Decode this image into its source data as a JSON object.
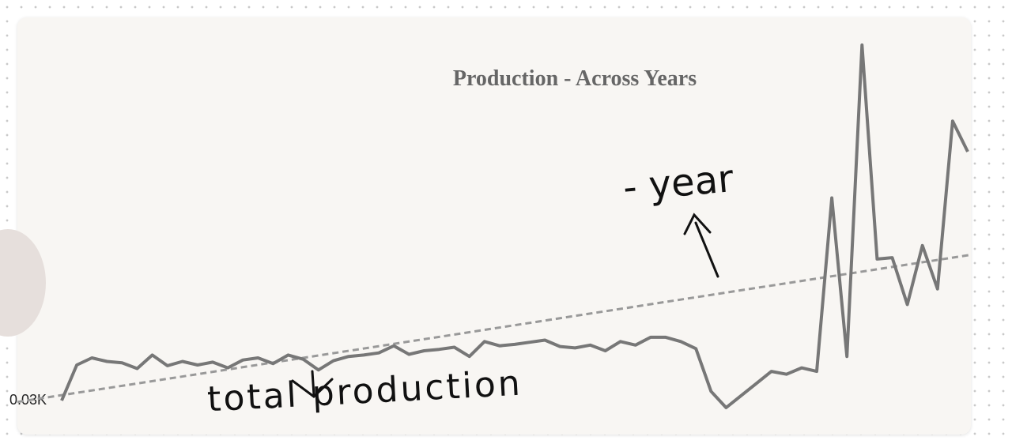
{
  "chart_data": {
    "type": "line",
    "title": "Production - Across Years",
    "y_ticks": [
      "0.03K"
    ],
    "trendline": true,
    "grid": false,
    "legend": "none",
    "series": [
      {
        "color": "#777777",
        "values": [
          0.03,
          0.08,
          0.09,
          0.085,
          0.083,
          0.075,
          0.094,
          0.079,
          0.085,
          0.08,
          0.084,
          0.076,
          0.087,
          0.09,
          0.082,
          0.094,
          0.088,
          0.073,
          0.086,
          0.092,
          0.094,
          0.097,
          0.107,
          0.095,
          0.1,
          0.102,
          0.105,
          0.092,
          0.113,
          0.107,
          0.109,
          0.112,
          0.115,
          0.106,
          0.104,
          0.108,
          0.1,
          0.113,
          0.108,
          0.119,
          0.119,
          0.113,
          0.103,
          0.043,
          0.02,
          0.037,
          0.054,
          0.071,
          0.067,
          0.076,
          0.071,
          0.315,
          0.092,
          0.53,
          0.229,
          0.231,
          0.165,
          0.248,
          0.187,
          0.423,
          0.38
        ]
      }
    ],
    "trend_values": [
      0.028,
      0.235
    ]
  },
  "annotations": {
    "arrow_label_total": "total production",
    "arrow_label_year": "- year"
  }
}
